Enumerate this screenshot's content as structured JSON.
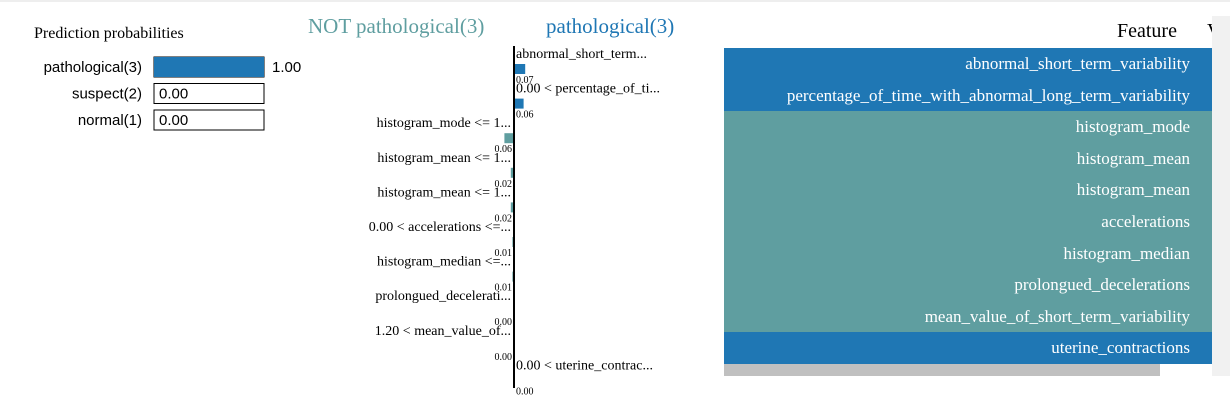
{
  "chart_data": [
    {
      "type": "hbar",
      "title": "Prediction probabilities",
      "categories": [
        "pathological(3)",
        "suspect(2)",
        "normal(1)"
      ],
      "values": [
        1,
        0,
        0
      ],
      "value_labels": [
        "1.00",
        "0.00",
        "0.00"
      ],
      "color": "#1f77b4",
      "xlim": [
        0,
        1
      ]
    },
    {
      "type": "diverging",
      "title_negative": "NOT pathological(3)",
      "title_positive": "pathological(3)",
      "categories": [
        "abnormal_short_term...",
        "0.00 < percentage_of_ti...",
        "histogram_mode <= 1...",
        "histogram_mean <= 1...",
        "histogram_mean <= 1...",
        "0.00 < accelerations <=...",
        "histogram_median <=...",
        "prolongued_decelerati...",
        "1.20 < mean_value_of...",
        "0.00 < uterine_contrac..."
      ],
      "values": [
        0.07,
        0.06,
        -0.06,
        -0.02,
        -0.02,
        -0.01,
        -0.01,
        -0.004,
        -0.003,
        0.003
      ],
      "value_labels": [
        "0.07",
        "0.06",
        "0.06",
        "0.02",
        "0.02",
        "0.01",
        "0.01",
        "0.00",
        "0.00",
        "0.00"
      ],
      "positive_color": "#1f77b4",
      "negative_color": "#5f9ea0",
      "xlim": [
        -1,
        1
      ]
    }
  ],
  "table": {
    "header": [
      "Feature",
      "Value"
    ],
    "rows": [
      {
        "feature": "abnormal_short_term_variability",
        "color": "#1f77b4"
      },
      {
        "feature": "percentage_of_time_with_abnormal_long_term_variability",
        "color": "#1f77b4"
      },
      {
        "feature": "histogram_mode",
        "color": "#5f9ea0"
      },
      {
        "feature": "histogram_mean",
        "color": "#5f9ea0"
      },
      {
        "feature": "histogram_mean",
        "color": "#5f9ea0"
      },
      {
        "feature": "accelerations",
        "color": "#5f9ea0"
      },
      {
        "feature": "histogram_median",
        "color": "#5f9ea0"
      },
      {
        "feature": "prolongued_decelerations",
        "color": "#5f9ea0"
      },
      {
        "feature": "mean_value_of_short_term_variability",
        "color": "#5f9ea0"
      },
      {
        "feature": "uterine_contractions",
        "color": "#1f77b4"
      }
    ]
  }
}
